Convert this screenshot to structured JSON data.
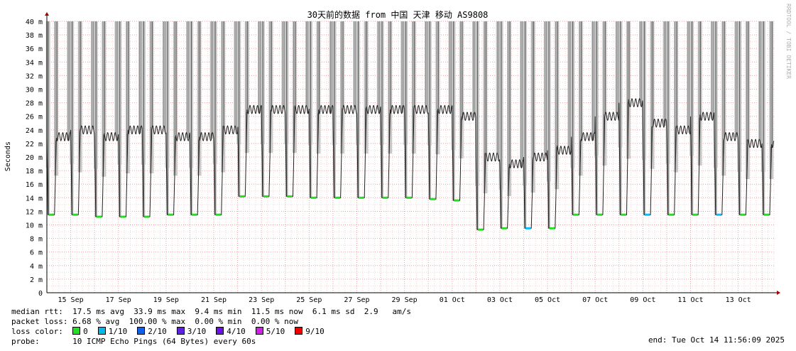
{
  "chart_data": {
    "type": "line",
    "title": "30天前的数据 from 中国 天津 移动 AS9808",
    "ylabel": "Seconds",
    "watermark": "RRDTOOL / TOBI OETIKER",
    "ylim": [
      0,
      40
    ],
    "y_ticks": [
      {
        "value": 0,
        "label": "0"
      },
      {
        "value": 2,
        "label": "2 m"
      },
      {
        "value": 4,
        "label": "4 m"
      },
      {
        "value": 6,
        "label": "6 m"
      },
      {
        "value": 8,
        "label": "8 m"
      },
      {
        "value": 10,
        "label": "10 m"
      },
      {
        "value": 12,
        "label": "12 m"
      },
      {
        "value": 14,
        "label": "14 m"
      },
      {
        "value": 16,
        "label": "16 m"
      },
      {
        "value": 18,
        "label": "18 m"
      },
      {
        "value": 20,
        "label": "20 m"
      },
      {
        "value": 22,
        "label": "22 m"
      },
      {
        "value": 24,
        "label": "24 m"
      },
      {
        "value": 26,
        "label": "26 m"
      },
      {
        "value": 28,
        "label": "28 m"
      },
      {
        "value": 30,
        "label": "30 m"
      },
      {
        "value": 32,
        "label": "32 m"
      },
      {
        "value": 34,
        "label": "34 m"
      },
      {
        "value": 36,
        "label": "36 m"
      },
      {
        "value": 38,
        "label": "38 m"
      },
      {
        "value": 40,
        "label": "40 m"
      }
    ],
    "x_ticks": [
      {
        "day": 1,
        "label": "15 Sep"
      },
      {
        "day": 3,
        "label": "17 Sep"
      },
      {
        "day": 5,
        "label": "19 Sep"
      },
      {
        "day": 7,
        "label": "21 Sep"
      },
      {
        "day": 9,
        "label": "23 Sep"
      },
      {
        "day": 11,
        "label": "25 Sep"
      },
      {
        "day": 13,
        "label": "27 Sep"
      },
      {
        "day": 15,
        "label": "29 Sep"
      },
      {
        "day": 17,
        "label": "01 Oct"
      },
      {
        "day": 19,
        "label": "03 Oct"
      },
      {
        "day": 21,
        "label": "05 Oct"
      },
      {
        "day": 23,
        "label": "07 Oct"
      },
      {
        "day": 25,
        "label": "09 Oct"
      },
      {
        "day": 27,
        "label": "11 Oct"
      },
      {
        "day": 29,
        "label": "13 Oct"
      }
    ],
    "xlim": [
      0,
      30.5
    ],
    "daily": [
      {
        "night": 11.5,
        "day": 23,
        "loss_color": "#20e020"
      },
      {
        "night": 11.5,
        "day": 24,
        "loss_color": "#20e020"
      },
      {
        "night": 11.2,
        "day": 23,
        "loss_color": "#20e020"
      },
      {
        "night": 11.2,
        "day": 24,
        "loss_color": "#20e020"
      },
      {
        "night": 11.2,
        "day": 24,
        "loss_color": "#20e020"
      },
      {
        "night": 11.5,
        "day": 23,
        "loss_color": "#20e020"
      },
      {
        "night": 11.5,
        "day": 23,
        "loss_color": "#20e020"
      },
      {
        "night": 11.5,
        "day": 24,
        "loss_color": "#20e020"
      },
      {
        "night": 14.2,
        "day": 27,
        "loss_color": "#20e020"
      },
      {
        "night": 14.2,
        "day": 27,
        "loss_color": "#20e020"
      },
      {
        "night": 14.2,
        "day": 27,
        "loss_color": "#20e020"
      },
      {
        "night": 14,
        "day": 27,
        "loss_color": "#20e020"
      },
      {
        "night": 14,
        "day": 27,
        "loss_color": "#20e020"
      },
      {
        "night": 14,
        "day": 27,
        "loss_color": "#20e020"
      },
      {
        "night": 14,
        "day": 27,
        "loss_color": "#20e020"
      },
      {
        "night": 14,
        "day": 27,
        "loss_color": "#20e020"
      },
      {
        "night": 13.8,
        "day": 27,
        "loss_color": "#20e020"
      },
      {
        "night": 13.6,
        "day": 26,
        "loss_color": "#20e020"
      },
      {
        "night": 9.3,
        "day": 20,
        "loss_color": "#20e020"
      },
      {
        "night": 9.5,
        "day": 19,
        "loss_color": "#20e020"
      },
      {
        "night": 9.5,
        "day": 20,
        "loss_color": "#00c0ff"
      },
      {
        "night": 9.5,
        "day": 21,
        "loss_color": "#20e020"
      },
      {
        "night": 11.5,
        "day": 23,
        "loss_color": "#20e020"
      },
      {
        "night": 11.5,
        "day": 26,
        "loss_color": "#20e020"
      },
      {
        "night": 11.5,
        "day": 28,
        "loss_color": "#20e020"
      },
      {
        "night": 11.5,
        "day": 25,
        "loss_color": "#00c0ff"
      },
      {
        "night": 11.5,
        "day": 24,
        "loss_color": "#20e020"
      },
      {
        "night": 11.5,
        "day": 26,
        "loss_color": "#20e020"
      },
      {
        "night": 11.5,
        "day": 23,
        "loss_color": "#00c0ff"
      },
      {
        "night": 11.5,
        "day": 22,
        "loss_color": "#20e020"
      },
      {
        "night": 11.5,
        "day": 22,
        "loss_color": "#20e020"
      }
    ],
    "stats": {
      "median_rtt": {
        "label": "median rtt:",
        "avg": "17.5 ms avg",
        "max": "33.9 ms max",
        "min": "9.4 ms min",
        "now": "11.5 ms now",
        "sd": "6.1 ms sd",
        "am": "2.9",
        "am_unit": "am/s"
      },
      "packet_loss": {
        "label": "packet loss:",
        "avg": "6.68 % avg",
        "max": "100.00 % max",
        "min": "0.00 % min",
        "now": "0.00 % now"
      }
    },
    "loss_colors": {
      "label": "loss color:",
      "items": [
        {
          "label": "0",
          "color": "#20e020"
        },
        {
          "label": "1/10",
          "color": "#00b8f0"
        },
        {
          "label": "2/10",
          "color": "#1060f0"
        },
        {
          "label": "3/10",
          "color": "#6020e0"
        },
        {
          "label": "4/10",
          "color": "#7010e8"
        },
        {
          "label": "5/10",
          "color": "#d020e8"
        },
        {
          "label": "9/10",
          "color": "#f00000"
        }
      ]
    },
    "probe": {
      "label": "probe:",
      "value": "10 ICMP Echo Pings (64 Bytes) every 60s"
    },
    "end": "end: Tue Oct 14 11:56:09 2025"
  }
}
